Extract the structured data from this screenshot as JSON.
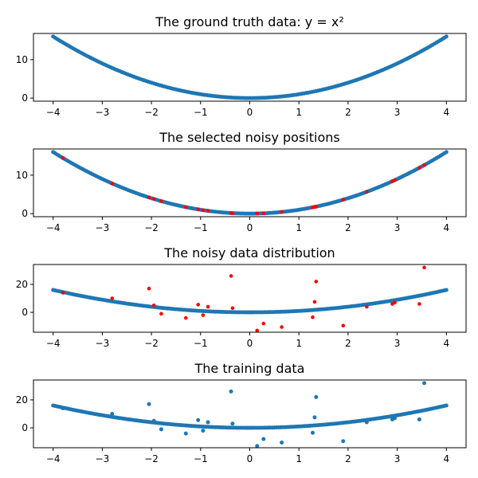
{
  "chart_data": [
    {
      "type": "scatter",
      "title": "The ground truth data: y = x²",
      "xlim": [
        -4.4,
        4.4
      ],
      "ylim": [
        -0.8,
        16.8
      ],
      "xticks": [
        "−4",
        "−3",
        "−2",
        "−1",
        "0",
        "1",
        "2",
        "3",
        "4"
      ],
      "yticks": [
        "0",
        "10"
      ],
      "series": [
        {
          "color": "#1f77b4",
          "function": "y = x^2",
          "x_range": [
            -4,
            4
          ],
          "points": 200
        }
      ]
    },
    {
      "type": "scatter",
      "title": "The selected noisy positions",
      "xlim": [
        -4.4,
        4.4
      ],
      "ylim": [
        -0.8,
        16.8
      ],
      "xticks": [
        "−4",
        "−3",
        "−2",
        "−1",
        "0",
        "1",
        "2",
        "3",
        "4"
      ],
      "yticks": [
        "0",
        "10"
      ],
      "series": [
        {
          "color": "#1f77b4",
          "function": "y = x^2",
          "x_range": [
            -4,
            4
          ],
          "points": 200
        },
        {
          "color": "#ff0000",
          "x": [
            -3.8,
            -2.8,
            -2.05,
            -1.95,
            -1.8,
            -1.3,
            -1.05,
            -0.95,
            -0.85,
            -0.38,
            -0.35,
            0.15,
            0.28,
            0.65,
            1.28,
            1.32,
            1.35,
            1.9,
            2.38,
            2.9,
            2.95,
            3.45,
            3.55
          ],
          "y": [
            14.44,
            7.84,
            4.2,
            3.8,
            3.24,
            1.69,
            1.1,
            0.9,
            0.72,
            0.14,
            0.12,
            0.02,
            0.08,
            0.42,
            1.64,
            1.74,
            1.82,
            3.61,
            5.66,
            8.41,
            8.7,
            11.9,
            12.6
          ]
        }
      ]
    },
    {
      "type": "scatter",
      "title": "The noisy data distribution",
      "xlim": [
        -4.4,
        4.4
      ],
      "ylim": [
        -14.2,
        34.2
      ],
      "xticks": [
        "−4",
        "−3",
        "−2",
        "−1",
        "0",
        "1",
        "2",
        "3",
        "4"
      ],
      "yticks": [
        "0",
        "20"
      ],
      "series": [
        {
          "color": "#1f77b4",
          "function": "y = x^2",
          "x_range": [
            -4,
            4
          ],
          "points": 200
        },
        {
          "color": "#ff0000",
          "x": [
            -3.8,
            -2.8,
            -2.05,
            -1.95,
            -1.8,
            -1.3,
            -1.05,
            -0.95,
            -0.85,
            -0.38,
            -0.35,
            0.15,
            0.28,
            0.65,
            1.28,
            1.32,
            1.35,
            1.9,
            2.38,
            2.9,
            2.95,
            3.45,
            3.55
          ],
          "y": [
            14.0,
            10.0,
            17.0,
            5.0,
            -1.0,
            -4.0,
            5.5,
            -2.0,
            4.0,
            26.0,
            3.0,
            -13.0,
            -8.0,
            -10.5,
            -3.5,
            7.5,
            22.0,
            -9.5,
            4.0,
            6.0,
            7.0,
            6.0,
            32.0
          ]
        }
      ]
    },
    {
      "type": "scatter",
      "title": "The training data",
      "xlim": [
        -4.4,
        4.4
      ],
      "ylim": [
        -14.2,
        34.2
      ],
      "xticks": [
        "−4",
        "−3",
        "−2",
        "−1",
        "0",
        "1",
        "2",
        "3",
        "4"
      ],
      "yticks": [
        "0",
        "20"
      ],
      "series": [
        {
          "color": "#1f77b4",
          "function": "y = x^2 (with noisy replacements)",
          "x_range": [
            -4,
            4
          ],
          "points": 200
        },
        {
          "color": "#1f77b4",
          "x": [
            -3.8,
            -2.8,
            -2.05,
            -1.95,
            -1.8,
            -1.3,
            -1.05,
            -0.95,
            -0.85,
            -0.38,
            -0.35,
            0.15,
            0.28,
            0.65,
            1.28,
            1.32,
            1.35,
            1.9,
            2.38,
            2.9,
            2.95,
            3.45,
            3.55
          ],
          "y": [
            14.0,
            10.0,
            17.0,
            5.0,
            -1.0,
            -4.0,
            5.5,
            -2.0,
            4.0,
            26.0,
            3.0,
            -13.0,
            -8.0,
            -10.5,
            -3.5,
            7.5,
            22.0,
            -9.5,
            4.0,
            6.0,
            7.0,
            6.0,
            32.0
          ]
        }
      ]
    }
  ]
}
